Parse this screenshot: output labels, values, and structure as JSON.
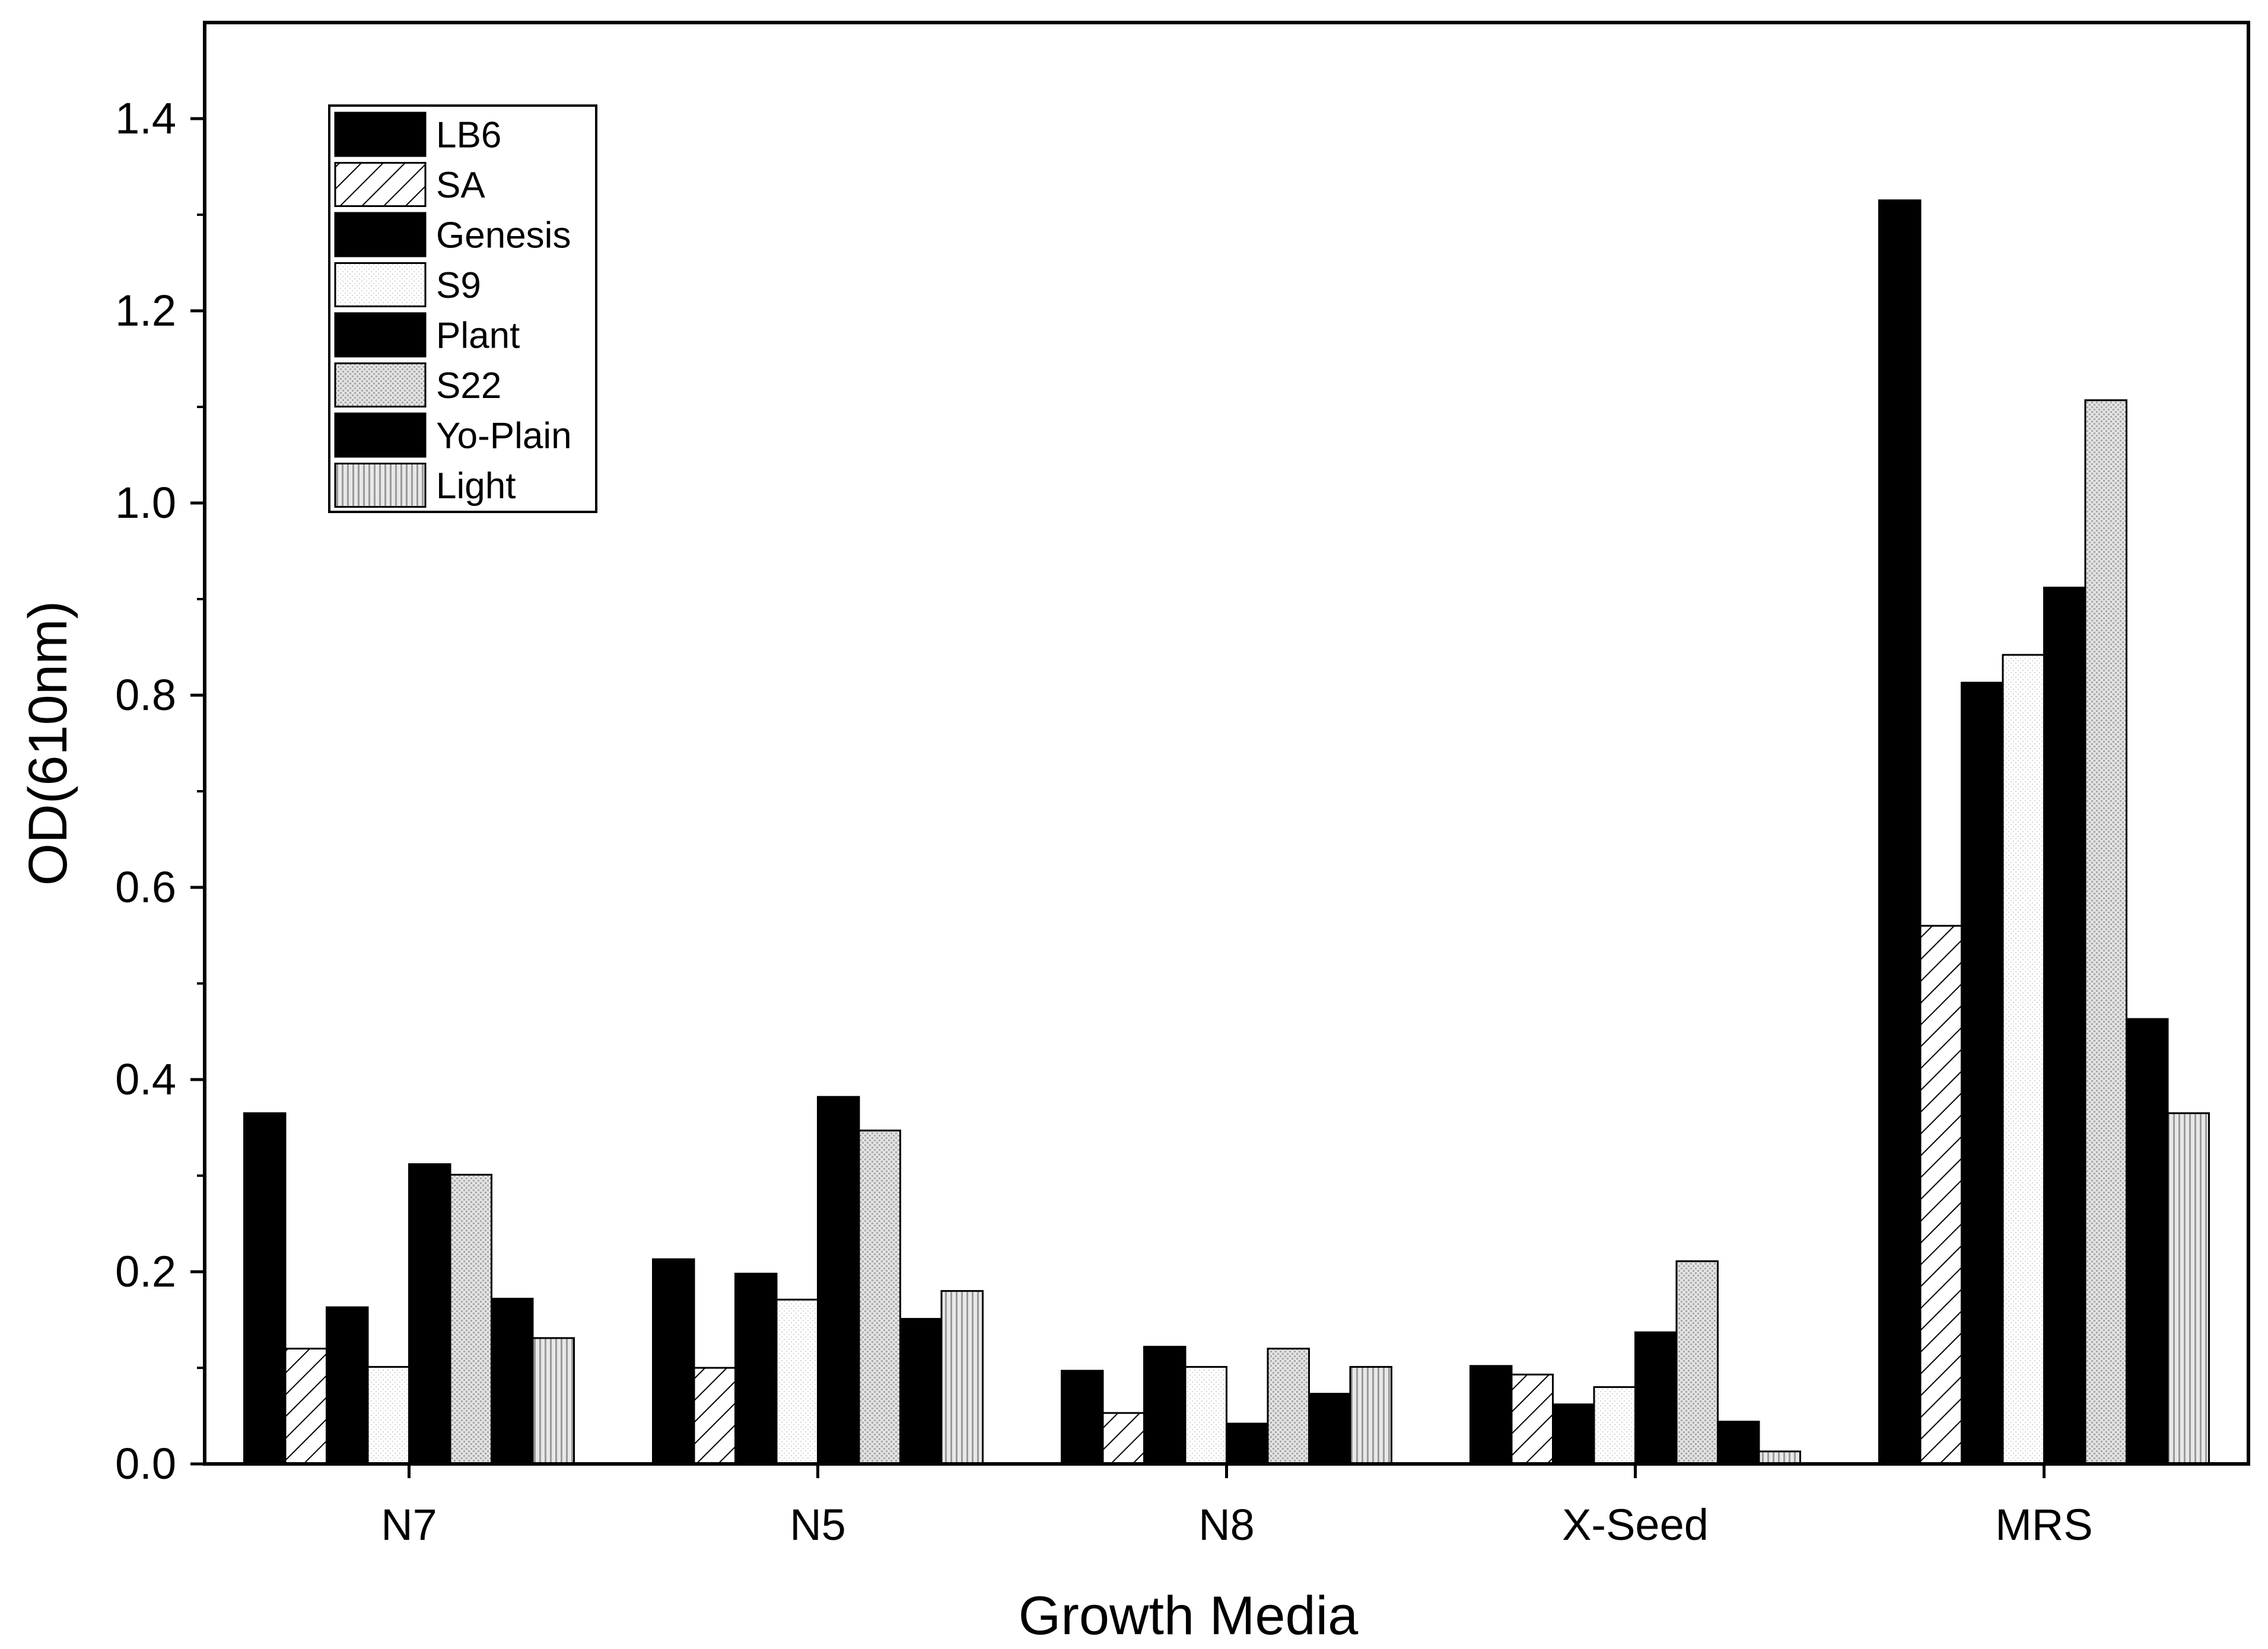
{
  "chart_data": {
    "type": "bar",
    "title": "",
    "xlabel": "Growth Media",
    "ylabel": "OD(610nm)",
    "ylim": [
      0,
      1.5
    ],
    "yticks": [
      "0.0",
      "0.2",
      "0.4",
      "0.6",
      "0.8",
      "1.0",
      "1.2",
      "1.4"
    ],
    "grid": false,
    "legend_position": "top-left",
    "categories": [
      "N7",
      "N5",
      "N8",
      "X-Seed",
      "MRS"
    ],
    "series": [
      {
        "name": "LB6",
        "pattern": "solid",
        "values": [
          0.365,
          0.213,
          0.097,
          0.102,
          1.315
        ]
      },
      {
        "name": "SA",
        "pattern": "hatch",
        "values": [
          0.12,
          0.1,
          0.053,
          0.093,
          0.56
        ]
      },
      {
        "name": "Genesis",
        "pattern": "solid",
        "values": [
          0.163,
          0.198,
          0.122,
          0.062,
          0.813
        ]
      },
      {
        "name": "S9",
        "pattern": "light-dots",
        "values": [
          0.101,
          0.171,
          0.101,
          0.08,
          0.842
        ]
      },
      {
        "name": "Plant",
        "pattern": "solid",
        "values": [
          0.312,
          0.382,
          0.042,
          0.137,
          0.912
        ]
      },
      {
        "name": "S22",
        "pattern": "gray-dots",
        "values": [
          0.301,
          0.347,
          0.12,
          0.211,
          1.107
        ]
      },
      {
        "name": "Yo-Plain",
        "pattern": "solid",
        "values": [
          0.172,
          0.151,
          0.073,
          0.044,
          0.463
        ]
      },
      {
        "name": "Light",
        "pattern": "vertical-lines",
        "values": [
          0.131,
          0.18,
          0.101,
          0.013,
          0.365
        ]
      }
    ]
  }
}
